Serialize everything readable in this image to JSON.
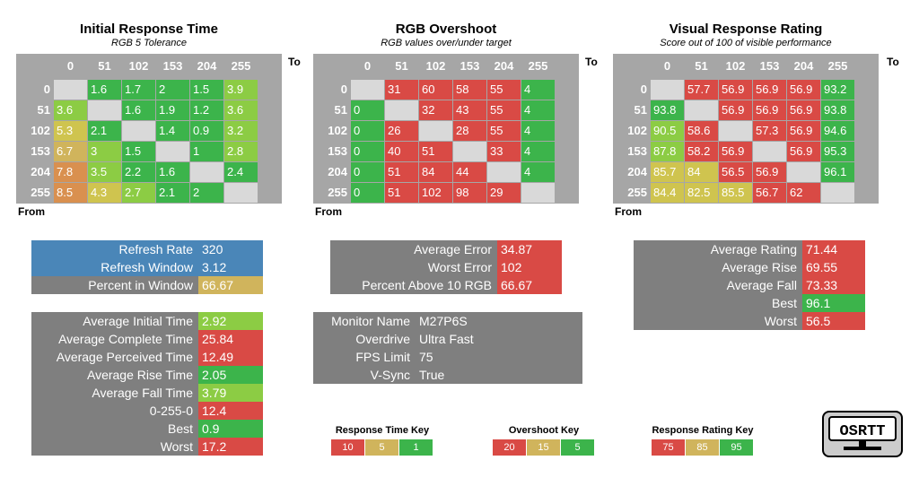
{
  "colors": {
    "green": "#3cb44b",
    "lightgreen": "#8ccc44",
    "yellow": "#cfc44f",
    "tan": "#d0b45c",
    "orange": "#d9904f",
    "red": "#d94a45",
    "blue": "#4a86b8",
    "gray": "#7f7f7f",
    "header_gray": "#a6a6a6",
    "empty": "#d9d9d9"
  },
  "common": {
    "to_label": "To",
    "from_label": "From",
    "headers": [
      "0",
      "51",
      "102",
      "153",
      "204",
      "255"
    ]
  },
  "matrices": [
    {
      "title": "Initial Response Time",
      "subtitle": "RGB 5 Tolerance",
      "rows": [
        [
          "",
          "1.6",
          "1.7",
          "2",
          "1.5",
          "3.9"
        ],
        [
          "3.6",
          "",
          "1.6",
          "1.9",
          "1.2",
          "3.6"
        ],
        [
          "5.3",
          "2.1",
          "",
          "1.4",
          "0.9",
          "3.2"
        ],
        [
          "6.7",
          "3",
          "1.5",
          "",
          "1",
          "2.8"
        ],
        [
          "7.8",
          "3.5",
          "2.2",
          "1.6",
          "",
          "2.4"
        ],
        [
          "8.5",
          "4.3",
          "2.7",
          "2.1",
          "2",
          ""
        ]
      ],
      "cell_colors": [
        [
          "empty",
          "green",
          "green",
          "green",
          "green",
          "lightgreen"
        ],
        [
          "lightgreen",
          "empty",
          "green",
          "green",
          "green",
          "lightgreen"
        ],
        [
          "yellow",
          "green",
          "empty",
          "green",
          "green",
          "lightgreen"
        ],
        [
          "tan",
          "lightgreen",
          "green",
          "empty",
          "green",
          "lightgreen"
        ],
        [
          "orange",
          "lightgreen",
          "green",
          "green",
          "empty",
          "green"
        ],
        [
          "orange",
          "yellow",
          "lightgreen",
          "green",
          "green",
          "empty"
        ]
      ]
    },
    {
      "title": "RGB Overshoot",
      "subtitle": "RGB values over/under target",
      "rows": [
        [
          "",
          "31",
          "60",
          "58",
          "55",
          "4"
        ],
        [
          "0",
          "",
          "32",
          "43",
          "55",
          "4"
        ],
        [
          "0",
          "26",
          "",
          "28",
          "55",
          "4"
        ],
        [
          "0",
          "40",
          "51",
          "",
          "33",
          "4"
        ],
        [
          "0",
          "51",
          "84",
          "44",
          "",
          "4"
        ],
        [
          "0",
          "51",
          "102",
          "98",
          "29",
          ""
        ]
      ],
      "cell_colors": [
        [
          "empty",
          "red",
          "red",
          "red",
          "red",
          "green"
        ],
        [
          "green",
          "empty",
          "red",
          "red",
          "red",
          "green"
        ],
        [
          "green",
          "red",
          "empty",
          "red",
          "red",
          "green"
        ],
        [
          "green",
          "red",
          "red",
          "empty",
          "red",
          "green"
        ],
        [
          "green",
          "red",
          "red",
          "red",
          "empty",
          "green"
        ],
        [
          "green",
          "red",
          "red",
          "red",
          "red",
          "empty"
        ]
      ]
    },
    {
      "title": "Visual Response Rating",
      "subtitle": "Score out of 100 of visible performance",
      "rows": [
        [
          "",
          "57.7",
          "56.9",
          "56.9",
          "56.9",
          "93.2"
        ],
        [
          "93.8",
          "",
          "56.9",
          "56.9",
          "56.9",
          "93.8"
        ],
        [
          "90.5",
          "58.6",
          "",
          "57.3",
          "56.9",
          "94.6"
        ],
        [
          "87.8",
          "58.2",
          "56.9",
          "",
          "56.9",
          "95.3"
        ],
        [
          "85.7",
          "84",
          "56.5",
          "56.9",
          "",
          "96.1"
        ],
        [
          "84.4",
          "82.5",
          "85.5",
          "56.7",
          "62",
          ""
        ]
      ],
      "cell_colors": [
        [
          "empty",
          "red",
          "red",
          "red",
          "red",
          "green"
        ],
        [
          "green",
          "empty",
          "red",
          "red",
          "red",
          "green"
        ],
        [
          "lightgreen",
          "red",
          "empty",
          "red",
          "red",
          "green"
        ],
        [
          "lightgreen",
          "red",
          "red",
          "empty",
          "red",
          "green"
        ],
        [
          "yellow",
          "yellow",
          "red",
          "red",
          "empty",
          "green"
        ],
        [
          "yellow",
          "yellow",
          "yellow",
          "red",
          "red",
          "empty"
        ]
      ]
    }
  ],
  "refresh_panel": [
    {
      "label": "Refresh Rate",
      "value": "320",
      "label_color": "blue",
      "value_color": "blue"
    },
    {
      "label": "Refresh Window",
      "value": "3.12",
      "label_color": "blue",
      "value_color": "blue"
    },
    {
      "label": "Percent in Window",
      "value": "66.67",
      "label_color": "gray",
      "value_color": "tan"
    }
  ],
  "time_panel": [
    {
      "label": "Average Initial Time",
      "value": "2.92",
      "value_color": "lightgreen"
    },
    {
      "label": "Average Complete Time",
      "value": "25.84",
      "value_color": "red"
    },
    {
      "label": "Average Perceived Time",
      "value": "12.49",
      "value_color": "red"
    },
    {
      "label": "Average Rise Time",
      "value": "2.05",
      "value_color": "green"
    },
    {
      "label": "Average Fall Time",
      "value": "3.79",
      "value_color": "lightgreen"
    },
    {
      "label": "0-255-0",
      "value": "12.4",
      "value_color": "red"
    },
    {
      "label": "Best",
      "value": "0.9",
      "value_color": "green"
    },
    {
      "label": "Worst",
      "value": "17.2",
      "value_color": "red"
    }
  ],
  "overshoot_panel": [
    {
      "label": "Average Error",
      "value": "34.87",
      "value_color": "red"
    },
    {
      "label": "Worst Error",
      "value": "102",
      "value_color": "red"
    },
    {
      "label": "Percent Above 10 RGB",
      "value": "66.67",
      "value_color": "red"
    }
  ],
  "monitor_panel": [
    {
      "label": "Monitor Name",
      "value": "M27P6S"
    },
    {
      "label": "Overdrive",
      "value": "Ultra Fast"
    },
    {
      "label": "FPS Limit",
      "value": "75"
    },
    {
      "label": "V-Sync",
      "value": "True"
    }
  ],
  "rating_panel": [
    {
      "label": "Average Rating",
      "value": "71.44",
      "value_color": "red"
    },
    {
      "label": "Average Rise",
      "value": "69.55",
      "value_color": "red"
    },
    {
      "label": "Average Fall",
      "value": "73.33",
      "value_color": "red"
    },
    {
      "label": "Best",
      "value": "96.1",
      "value_color": "green"
    },
    {
      "label": "Worst",
      "value": "56.5",
      "value_color": "red"
    }
  ],
  "keys": [
    {
      "title": "Response Time Key",
      "cells": [
        {
          "text": "10",
          "color": "red"
        },
        {
          "text": "5",
          "color": "tan"
        },
        {
          "text": "1",
          "color": "green"
        }
      ]
    },
    {
      "title": "Overshoot Key",
      "cells": [
        {
          "text": "20",
          "color": "red"
        },
        {
          "text": "15",
          "color": "tan"
        },
        {
          "text": "5",
          "color": "green"
        }
      ]
    },
    {
      "title": "Response Rating Key",
      "cells": [
        {
          "text": "75",
          "color": "red"
        },
        {
          "text": "85",
          "color": "tan"
        },
        {
          "text": "95",
          "color": "green"
        }
      ]
    }
  ],
  "logo": {
    "text": "OSRTT",
    "icon": "monitor-logo-icon"
  }
}
